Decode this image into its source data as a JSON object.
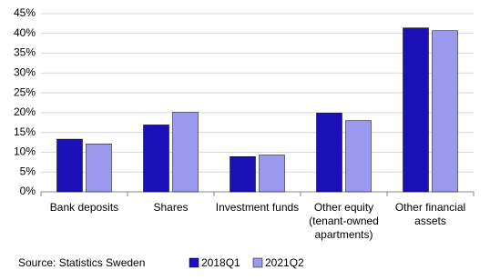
{
  "chart_data": {
    "type": "bar",
    "categories": [
      "Bank deposits",
      "Shares",
      "Investment funds",
      "Other equity (tenant-owned apartments)",
      "Other financial assets"
    ],
    "series": [
      {
        "name": "2018Q1",
        "color": "#1b10b8",
        "values": [
          13.3,
          16.9,
          8.9,
          19.9,
          41.4
        ]
      },
      {
        "name": "2021Q2",
        "color": "#9a99ee",
        "values": [
          12.1,
          20.1,
          9.3,
          18.0,
          40.7
        ]
      }
    ],
    "ylim": [
      0,
      45
    ],
    "yticks": [
      {
        "value": 0,
        "label": "0%"
      },
      {
        "value": 5,
        "label": "5%"
      },
      {
        "value": 10,
        "label": "10%"
      },
      {
        "value": 15,
        "label": "15%"
      },
      {
        "value": 20,
        "label": "20%"
      },
      {
        "value": 25,
        "label": "25%"
      },
      {
        "value": 30,
        "label": "30%"
      },
      {
        "value": 35,
        "label": "35%"
      },
      {
        "value": 40,
        "label": "40%"
      },
      {
        "value": 45,
        "label": "45%"
      }
    ],
    "grid": true,
    "legend": "bottom-right",
    "source": "Source: Statistics Sweden"
  }
}
